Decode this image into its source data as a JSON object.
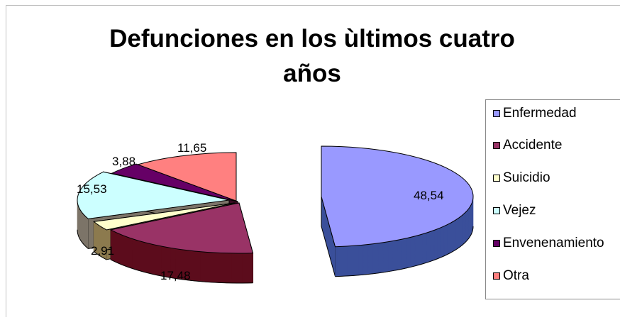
{
  "chart_data": {
    "type": "pie",
    "title_lines": [
      "Defunciones en los ùltimos cuatro",
      "años"
    ],
    "categories": [
      "Enfermedad",
      "Accidente",
      "Suicidio",
      "Vejez",
      "Envenenamiento",
      "Otra"
    ],
    "values": [
      48.54,
      17.48,
      2.91,
      15.53,
      3.88,
      11.65
    ],
    "data_labels": [
      "48,54",
      "17,48",
      "2,91",
      "15,53",
      "3,88",
      "11,65"
    ],
    "style": "3d-exploded",
    "legend_position": "right"
  },
  "legend": {
    "items": [
      {
        "label": "Enfermedad",
        "color": "#9999ff"
      },
      {
        "label": "Accidente",
        "color": "#993366"
      },
      {
        "label": "Suicidio",
        "color": "#ffffcc"
      },
      {
        "label": "Vejez",
        "color": "#ccffff"
      },
      {
        "label": "Envenenamiento",
        "color": "#660066"
      },
      {
        "label": "Otra",
        "color": "#ff8080"
      }
    ]
  },
  "colors": {
    "tops": [
      "#9999ff",
      "#993366",
      "#ffffcc",
      "#ccffff",
      "#660066",
      "#ff8080"
    ],
    "sides": [
      "#3a4f9a",
      "#5c0c1c",
      "#8c7a4e",
      "#7c7468",
      "#3a0a22",
      "#8a4a1a"
    ]
  }
}
